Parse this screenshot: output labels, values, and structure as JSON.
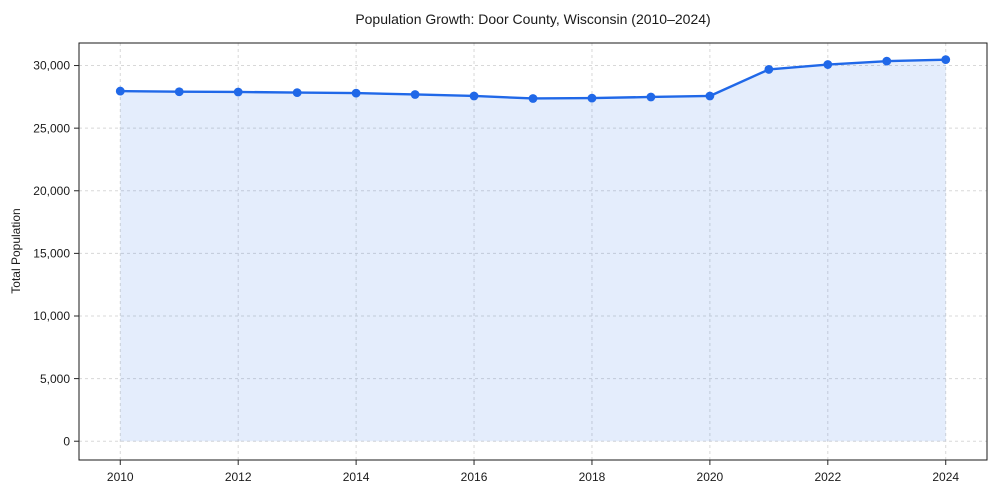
{
  "chart_data": {
    "type": "line",
    "title": "Population Growth: Door County, Wisconsin (2010–2024)",
    "xlabel": "",
    "ylabel": "Total Population",
    "x": [
      2010,
      2011,
      2012,
      2013,
      2014,
      2015,
      2016,
      2017,
      2018,
      2019,
      2020,
      2021,
      2022,
      2023,
      2024
    ],
    "values": [
      27960,
      27910,
      27890,
      27840,
      27800,
      27690,
      27570,
      27370,
      27400,
      27490,
      27570,
      29690,
      30080,
      30350,
      30470
    ],
    "xlim": [
      2009.3,
      2024.7
    ],
    "ylim": [
      -1500,
      31800
    ],
    "xticks": [
      2010,
      2012,
      2014,
      2016,
      2018,
      2020,
      2022,
      2024
    ],
    "xtick_labels": [
      "2010",
      "2012",
      "2014",
      "2016",
      "2018",
      "2020",
      "2022",
      "2024"
    ],
    "yticks": [
      0,
      5000,
      10000,
      15000,
      20000,
      25000,
      30000
    ],
    "ytick_labels": [
      "0",
      "5,000",
      "10,000",
      "15,000",
      "20,000",
      "25,000",
      "30,000"
    ],
    "grid": true,
    "grid_style": "dashed",
    "legend": false,
    "area_fill": true,
    "marker": "circle",
    "line_color": "#2068e8",
    "fill_color": "rgba(32,104,232,0.12)",
    "grid_color": "#d8d8d8",
    "spine_color": "#1a1a1a",
    "text_color": "#1a1a1a",
    "background_color": "#ffffff"
  }
}
